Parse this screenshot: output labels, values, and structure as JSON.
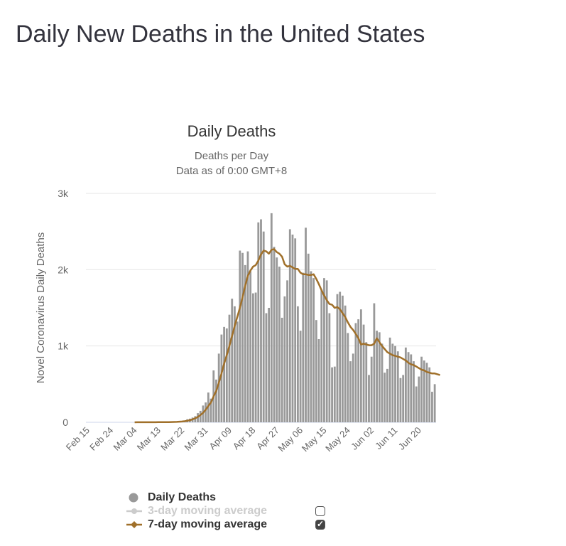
{
  "page": {
    "title": "Daily New Deaths in the United States"
  },
  "chart_data": {
    "type": "bar",
    "title": "Daily Deaths",
    "subtitle_lines": [
      "Deaths per Day",
      "Data as of 0:00 GMT+8"
    ],
    "ylabel": "Novel Coronavirus Daily Deaths",
    "xlabel": "",
    "ylim": [
      0,
      3000
    ],
    "y_ticks": [
      0,
      1000,
      2000,
      3000
    ],
    "y_tick_labels": [
      "0",
      "1k",
      "2k",
      "3k"
    ],
    "x_tick_labels": [
      "Feb 15",
      "Feb 24",
      "Mar 04",
      "Mar 13",
      "Mar 22",
      "Mar 31",
      "Apr 09",
      "Apr 18",
      "Apr 27",
      "May 06",
      "May 15",
      "May 24",
      "Jun 02",
      "Jun 11",
      "Jun 20"
    ],
    "x_start": "Feb 15",
    "grid": true,
    "legend_position": "bottom",
    "series": [
      {
        "name": "Daily Deaths",
        "type": "bar",
        "color": "#999999",
        "values": [
          0,
          0,
          0,
          0,
          0,
          0,
          0,
          0,
          0,
          0,
          0,
          0,
          0,
          0,
          0,
          0,
          0,
          0,
          0,
          1,
          0,
          1,
          1,
          2,
          1,
          2,
          1,
          1,
          3,
          4,
          3,
          4,
          5,
          8,
          10,
          12,
          16,
          24,
          40,
          48,
          62,
          80,
          120,
          150,
          220,
          260,
          390,
          310,
          680,
          560,
          900,
          1150,
          1250,
          1230,
          1410,
          1620,
          1520,
          1320,
          2250,
          2220,
          2060,
          2240,
          1980,
          1690,
          1700,
          2620,
          2660,
          2500,
          1430,
          1500,
          2740,
          2300,
          2160,
          2040,
          1370,
          1650,
          1860,
          2530,
          2460,
          2410,
          1520,
          1200,
          1960,
          2550,
          2210,
          1980,
          1890,
          1340,
          1090,
          1740,
          1890,
          1860,
          1430,
          720,
          730,
          1680,
          1710,
          1660,
          1530,
          1170,
          800,
          900,
          1300,
          1350,
          1480,
          1280,
          1050,
          620,
          860,
          1560,
          1200,
          1180,
          1030,
          650,
          700,
          1110,
          1030,
          1000,
          930,
          580,
          620,
          980,
          920,
          890,
          800,
          470,
          600,
          860,
          810,
          780,
          720,
          400,
          500
        ]
      },
      {
        "name": "3-day moving average",
        "type": "line",
        "color": "#cccccc",
        "visible": false
      },
      {
        "name": "7-day moving average",
        "type": "line",
        "color": "#a0702a",
        "visible": true,
        "values": [
          0,
          0,
          0,
          0,
          0,
          0,
          0,
          0,
          0,
          0,
          0,
          0,
          0,
          0,
          0,
          0,
          0,
          0,
          0,
          1,
          1,
          1,
          1,
          1,
          1,
          1,
          1,
          2,
          2,
          2,
          3,
          3,
          4,
          5,
          6,
          8,
          10,
          14,
          20,
          28,
          38,
          52,
          70,
          95,
          125,
          165,
          215,
          260,
          340,
          410,
          520,
          640,
          770,
          880,
          1000,
          1130,
          1260,
          1380,
          1500,
          1640,
          1790,
          1920,
          1990,
          2040,
          2060,
          2120,
          2200,
          2250,
          2240,
          2210,
          2260,
          2270,
          2230,
          2210,
          2170,
          2070,
          2040,
          2050,
          2030,
          2010,
          2010,
          1960,
          1940,
          1940,
          1930,
          1930,
          1940,
          1880,
          1810,
          1730,
          1660,
          1600,
          1550,
          1540,
          1500,
          1510,
          1480,
          1430,
          1380,
          1310,
          1250,
          1210,
          1160,
          1100,
          1020,
          1030,
          1020,
          1010,
          1010,
          1030,
          1100,
          1050,
          1000,
          960,
          920,
          900,
          880,
          870,
          860,
          850,
          830,
          810,
          780,
          760,
          750,
          730,
          710,
          690,
          680,
          660,
          650,
          640,
          640,
          630,
          620
        ]
      }
    ]
  },
  "legend": {
    "items": [
      {
        "label": "Daily Deaths",
        "checked": null
      },
      {
        "label": "3-day moving average",
        "checked": false
      },
      {
        "label": "7-day moving average",
        "checked": true
      }
    ],
    "checkmark": "✓"
  }
}
